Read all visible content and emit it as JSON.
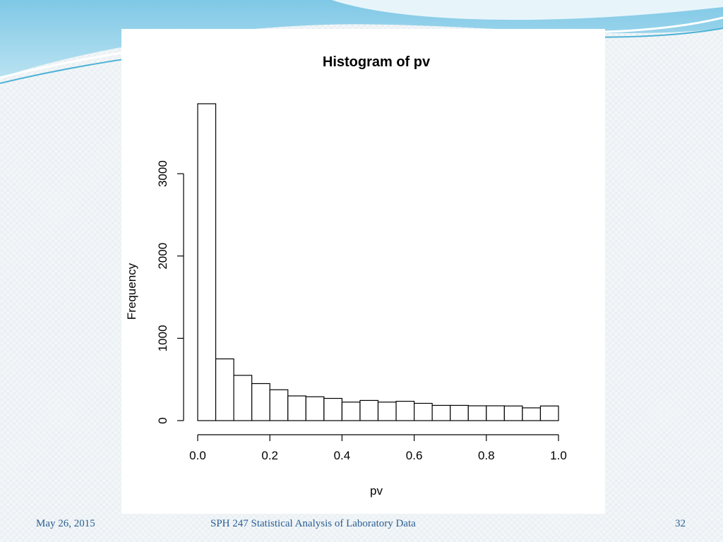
{
  "footer": {
    "date": "May 26, 2015",
    "course": "SPH 247 Statistical Analysis of Laboratory Data",
    "page": "32"
  },
  "colors": {
    "bar_fill": "#ffffff",
    "bar_stroke": "#000000",
    "footer_text": "#2a5d92",
    "banner_accent": "#4fb3d6"
  },
  "chart_data": {
    "type": "bar",
    "title": "Histogram of pv",
    "xlabel": "pv",
    "ylabel": "Frequency",
    "bin_width": 0.05,
    "bins": [
      0.0,
      0.05,
      0.1,
      0.15,
      0.2,
      0.25,
      0.3,
      0.35,
      0.4,
      0.45,
      0.5,
      0.55,
      0.6,
      0.65,
      0.7,
      0.75,
      0.8,
      0.85,
      0.9,
      0.95
    ],
    "values": [
      3850,
      750,
      550,
      450,
      375,
      300,
      290,
      270,
      225,
      245,
      225,
      235,
      210,
      185,
      185,
      180,
      180,
      178,
      155,
      178
    ],
    "xlim": [
      0,
      1
    ],
    "ylim": [
      0,
      3850
    ],
    "x_ticks": [
      "0.0",
      "0.2",
      "0.4",
      "0.6",
      "0.8",
      "1.0"
    ],
    "y_ticks": [
      "0",
      "1000",
      "2000",
      "3000"
    ],
    "grid": false,
    "legend": "none"
  }
}
